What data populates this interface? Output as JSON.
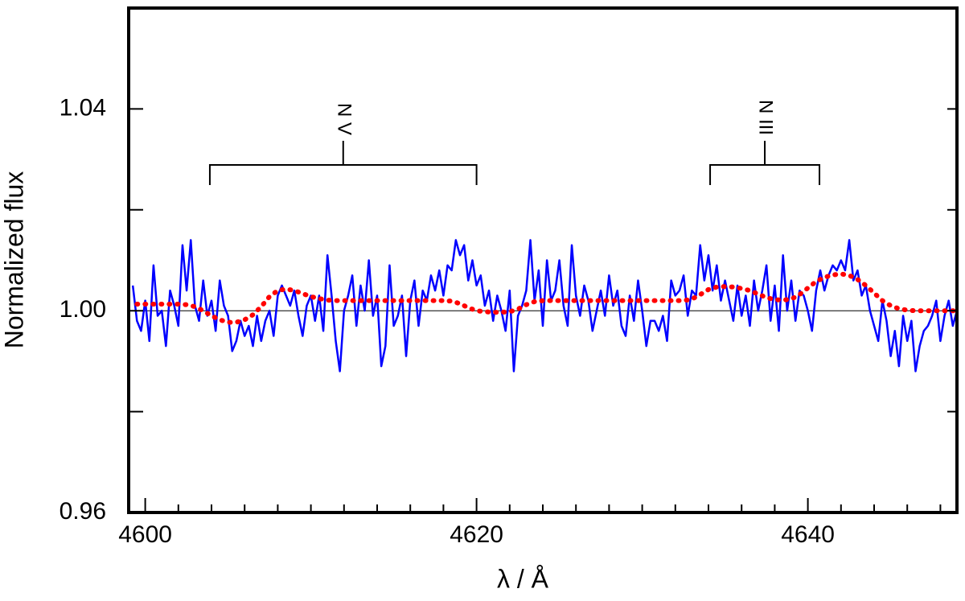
{
  "chart_data": {
    "type": "line",
    "xlabel": "λ / Å",
    "ylabel": "Normalized flux",
    "xlim": [
      4599,
      4649
    ],
    "ylim": [
      0.96,
      1.06
    ],
    "xticks": [
      4600,
      4620,
      4640
    ],
    "xminorticks": [
      4602,
      4604,
      4606,
      4608,
      4610,
      4612,
      4614,
      4616,
      4618,
      4622,
      4624,
      4626,
      4628,
      4630,
      4632,
      4634,
      4636,
      4638,
      4642,
      4644,
      4646,
      4648
    ],
    "yticks": [
      0.96,
      {
        "value": 1,
        "label": "1.00"
      },
      1.04
    ],
    "yminorticks": [
      0.98,
      1.02
    ],
    "reference_line": 1,
    "annotations": [
      {
        "label": "N V",
        "x_range": [
          4603.9,
          4620.0
        ]
      },
      {
        "label": "N III",
        "x_range": [
          4634.1,
          4640.7
        ]
      }
    ],
    "series": [
      {
        "color": "#0000ff",
        "style": "solid",
        "x": [
          4599.25,
          4599.5,
          4599.75,
          4600,
          4600.25,
          4600.5,
          4600.75,
          4601,
          4601.25,
          4601.5,
          4601.75,
          4602,
          4602.25,
          4602.5,
          4602.75,
          4603,
          4603.25,
          4603.5,
          4603.75,
          4604,
          4604.25,
          4604.5,
          4604.75,
          4605,
          4605.25,
          4605.5,
          4605.75,
          4606,
          4606.25,
          4606.5,
          4606.75,
          4607,
          4607.25,
          4607.5,
          4607.75,
          4608,
          4608.25,
          4608.5,
          4608.75,
          4609,
          4609.25,
          4609.5,
          4609.75,
          4610,
          4610.25,
          4610.5,
          4610.75,
          4611,
          4611.25,
          4611.5,
          4611.75,
          4612,
          4612.25,
          4612.5,
          4612.75,
          4613,
          4613.25,
          4613.5,
          4613.75,
          4614,
          4614.25,
          4614.5,
          4614.75,
          4615,
          4615.25,
          4615.5,
          4615.75,
          4616,
          4616.25,
          4616.5,
          4616.75,
          4617,
          4617.25,
          4617.5,
          4617.75,
          4618,
          4618.25,
          4618.5,
          4618.75,
          4619,
          4619.25,
          4619.5,
          4619.75,
          4620,
          4620.25,
          4620.5,
          4620.75,
          4621,
          4621.25,
          4621.5,
          4621.75,
          4622,
          4622.25,
          4622.5,
          4622.75,
          4623,
          4623.25,
          4623.5,
          4623.75,
          4624,
          4624.25,
          4624.5,
          4624.75,
          4625,
          4625.25,
          4625.5,
          4625.75,
          4626,
          4626.25,
          4626.5,
          4626.75,
          4627,
          4627.25,
          4627.5,
          4627.75,
          4628,
          4628.25,
          4628.5,
          4628.75,
          4629,
          4629.25,
          4629.5,
          4629.75,
          4630,
          4630.25,
          4630.5,
          4630.75,
          4631,
          4631.25,
          4631.5,
          4631.75,
          4632,
          4632.25,
          4632.5,
          4632.75,
          4633,
          4633.25,
          4633.5,
          4633.75,
          4634,
          4634.25,
          4634.5,
          4634.75,
          4635,
          4635.25,
          4635.5,
          4635.75,
          4636,
          4636.25,
          4636.5,
          4636.75,
          4637,
          4637.25,
          4637.5,
          4637.75,
          4638,
          4638.25,
          4638.5,
          4638.75,
          4639,
          4639.25,
          4639.5,
          4639.75,
          4640,
          4640.25,
          4640.5,
          4640.75,
          4641,
          4641.25,
          4641.5,
          4641.75,
          4642,
          4642.25,
          4642.5,
          4642.75,
          4643,
          4643.25,
          4643.5,
          4643.75,
          4644,
          4644.25,
          4644.5,
          4644.75,
          4645,
          4645.25,
          4645.5,
          4645.75,
          4646,
          4646.25,
          4646.5,
          4646.75,
          4647,
          4647.25,
          4647.5,
          4647.75,
          4648,
          4648.25,
          4648.5,
          4648.75,
          4649
        ],
        "values": [
          1.005,
          0.998,
          0.996,
          1.002,
          0.994,
          1.009,
          0.999,
          1.0,
          0.993,
          1.004,
          1.001,
          0.997,
          1.013,
          1.004,
          1.014,
          1.001,
          0.998,
          1.006,
          0.999,
          1.002,
          0.996,
          1.006,
          1.001,
          0.999,
          0.992,
          0.994,
          0.998,
          0.995,
          0.997,
          0.993,
          0.999,
          0.994,
          0.998,
          1.0,
          0.995,
          1.003,
          1.005,
          1.003,
          1.001,
          1.004,
          0.999,
          0.995,
          1.001,
          1.003,
          0.998,
          1.003,
          0.996,
          1.011,
          1.003,
          0.994,
          0.988,
          1.0,
          1.003,
          1.007,
          0.997,
          1.005,
          1.0,
          1.01,
          0.999,
          1.003,
          0.989,
          0.993,
          1.009,
          0.997,
          0.999,
          1.003,
          0.991,
          1.002,
          1.006,
          0.997,
          1.004,
          1.002,
          1.007,
          1.004,
          1.008,
          1.003,
          1.009,
          1.008,
          1.014,
          1.011,
          1.013,
          1.006,
          1.01,
          1.005,
          1.007,
          1.001,
          1.004,
          0.998,
          1.003,
          1.0,
          0.996,
          1.004,
          0.988,
          0.999,
          1.001,
          1.004,
          1.014,
          1.002,
          1.008,
          0.997,
          1.01,
          1.002,
          1.004,
          1.01,
          1.001,
          0.997,
          1.013,
          1.003,
          0.999,
          1.005,
          1.002,
          0.996,
          1.0,
          1.004,
          0.999,
          1.007,
          1.001,
          1.004,
          0.997,
          0.995,
          1.003,
          0.998,
          1.006,
          1.0,
          0.993,
          0.998,
          0.998,
          0.996,
          0.999,
          0.994,
          1.006,
          1.003,
          1.004,
          1.007,
          0.999,
          1.004,
          1.003,
          1.013,
          1.006,
          1.011,
          1.004,
          1.009,
          1.002,
          1.006,
          1.002,
          0.998,
          1.005,
          0.999,
          1.003,
          0.997,
          1.006,
          1.0,
          1.004,
          1.009,
          0.998,
          1.005,
          0.996,
          1.011,
          1.0,
          1.006,
          0.998,
          1.004,
          1.003,
          1.0,
          0.996,
          1.004,
          1.008,
          1.004,
          1.007,
          1.009,
          1.008,
          1.01,
          1.008,
          1.014,
          1.006,
          1.008,
          1.003,
          1.005,
          1.0,
          0.997,
          0.994,
          1.002,
          0.998,
          0.991,
          0.996,
          0.989,
          0.999,
          0.994,
          0.998,
          0.988,
          0.993,
          0.996,
          0.997,
          0.999,
          1.002,
          0.994,
          0.999,
          1.002,
          0.997,
          1.0
        ]
      },
      {
        "color": "#ff0000",
        "style": "dotted",
        "x": [
          4599.5,
          4600,
          4600.5,
          4601,
          4601.5,
          4602,
          4602.5,
          4603,
          4603.5,
          4604,
          4604.5,
          4605,
          4605.5,
          4606,
          4606.5,
          4607,
          4607.5,
          4608,
          4608.5,
          4609,
          4609.5,
          4610,
          4610.5,
          4611,
          4611.5,
          4612,
          4612.5,
          4613,
          4613.5,
          4614,
          4614.5,
          4615,
          4615.5,
          4616,
          4616.5,
          4617,
          4617.5,
          4618,
          4618.5,
          4619,
          4619.5,
          4620,
          4620.5,
          4621,
          4621.5,
          4622,
          4622.5,
          4623,
          4623.5,
          4624,
          4624.5,
          4625,
          4625.5,
          4626,
          4626.5,
          4627,
          4627.5,
          4628,
          4628.5,
          4629,
          4629.5,
          4630,
          4630.5,
          4631,
          4631.5,
          4632,
          4632.5,
          4633,
          4633.5,
          4634,
          4634.5,
          4635,
          4635.5,
          4636,
          4636.5,
          4637,
          4637.5,
          4638,
          4638.5,
          4639,
          4639.5,
          4640,
          4640.5,
          4641,
          4641.5,
          4642,
          4642.5,
          4643,
          4643.5,
          4644,
          4644.5,
          4645,
          4645.5,
          4646,
          4646.5,
          4647,
          4647.5,
          4648,
          4648.5,
          4649
        ],
        "values": [
          1.0013,
          1.0013,
          1.0013,
          1.0013,
          1.0013,
          1.0013,
          1.0012,
          1.0008,
          1.0,
          0.999,
          0.9982,
          0.9977,
          0.9977,
          0.9982,
          0.9992,
          1.0008,
          1.0028,
          1.004,
          1.0043,
          1.004,
          1.0034,
          1.0028,
          1.0024,
          1.0021,
          1.002,
          1.002,
          1.002,
          1.002,
          1.002,
          1.002,
          1.002,
          1.002,
          1.002,
          1.002,
          1.002,
          1.002,
          1.002,
          1.002,
          1.0019,
          1.0014,
          1.0006,
          1.0,
          0.9998,
          0.9997,
          0.9997,
          0.9998,
          1.0003,
          1.0012,
          1.0018,
          1.002,
          1.002,
          1.002,
          1.002,
          1.002,
          1.002,
          1.002,
          1.002,
          1.002,
          1.002,
          1.002,
          1.002,
          1.002,
          1.002,
          1.002,
          1.002,
          1.002,
          1.002,
          1.0023,
          1.0032,
          1.0042,
          1.0047,
          1.0048,
          1.0047,
          1.0044,
          1.004,
          1.0033,
          1.0026,
          1.0022,
          1.0021,
          1.0023,
          1.0032,
          1.0045,
          1.0058,
          1.0066,
          1.0071,
          1.0073,
          1.007,
          1.0062,
          1.005,
          1.0035,
          1.002,
          1.001,
          1.0004,
          1.0001,
          1.0,
          1.0,
          1.0,
          1.0,
          1.0,
          1.0
        ]
      }
    ]
  }
}
